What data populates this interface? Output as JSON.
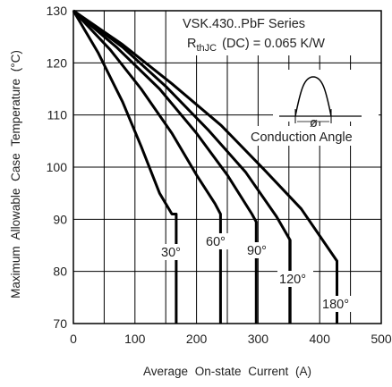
{
  "chart_data": {
    "type": "line",
    "ylabel": "Maximum Allowable Case Temperature (°C)",
    "xlabel": "Average On-state Current (A)",
    "xlim": [
      0,
      500
    ],
    "ylim": [
      70,
      130
    ],
    "xticks": [
      "0",
      "100",
      "200",
      "300",
      "400",
      "500"
    ],
    "yticks": [
      "70",
      "80",
      "90",
      "100",
      "110",
      "120",
      "130"
    ],
    "grid": true,
    "annotation": {
      "series_title": "VSK.430..PbF  Series",
      "rth_symbol_main": "R",
      "rth_symbol_sub": "thJC",
      "rth_value": "(DC)  =  0.065  K/W",
      "inset_phi": "ø",
      "inset_caption": "Conduction  Angle"
    },
    "series": [
      {
        "name": "30°",
        "label": "30°",
        "x": [
          0,
          40,
          80,
          110,
          140,
          160,
          167,
          167
        ],
        "y": [
          130,
          122,
          112.5,
          104,
          95,
          91,
          91,
          70
        ]
      },
      {
        "name": "60°",
        "label": "60°",
        "x": [
          0,
          60,
          110,
          160,
          200,
          230,
          239,
          239
        ],
        "y": [
          130,
          122.5,
          115,
          106.5,
          98.5,
          93,
          91,
          70
        ]
      },
      {
        "name": "90°",
        "label": "90°",
        "x": [
          0,
          70,
          140,
          200,
          250,
          290,
          297,
          297
        ],
        "y": [
          130,
          123,
          115,
          106.5,
          98.5,
          91,
          89.5,
          70
        ]
      },
      {
        "name": "120°",
        "label": "120°",
        "x": [
          0,
          80,
          150,
          220,
          280,
          330,
          352,
          352
        ],
        "y": [
          130,
          123,
          115.5,
          107,
          99,
          90.5,
          86,
          70
        ]
      },
      {
        "name": "180°",
        "label": "180°",
        "x": [
          0,
          80,
          160,
          240,
          310,
          370,
          428,
          428
        ],
        "y": [
          130,
          123.5,
          116,
          108,
          99.5,
          92,
          82,
          70
        ]
      }
    ]
  }
}
